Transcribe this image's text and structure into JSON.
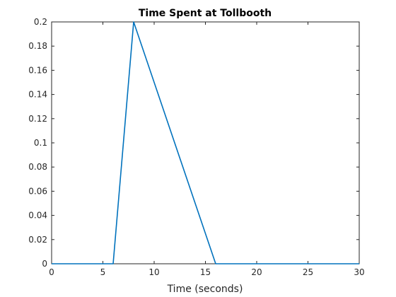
{
  "chart_data": {
    "type": "line",
    "title": "Time Spent at Tollbooth",
    "xlabel": "Time (seconds)",
    "ylabel": "",
    "xlim": [
      0,
      30
    ],
    "ylim": [
      0,
      0.2
    ],
    "xticks": [
      0,
      5,
      10,
      15,
      20,
      25,
      30
    ],
    "xtick_labels": [
      "0",
      "5",
      "10",
      "15",
      "20",
      "25",
      "30"
    ],
    "yticks": [
      0,
      0.02,
      0.04,
      0.06,
      0.08,
      0.1,
      0.12,
      0.14,
      0.16,
      0.18,
      0.2
    ],
    "ytick_labels": [
      "0",
      "0.02",
      "0.04",
      "0.06",
      "0.08",
      "0.1",
      "0.12",
      "0.14",
      "0.16",
      "0.18",
      "0.2"
    ],
    "grid": false,
    "series": [
      {
        "color": "#0072BD",
        "x": [
          0,
          6,
          8,
          16,
          30
        ],
        "y": [
          0,
          0,
          0.2,
          0,
          0
        ]
      }
    ]
  }
}
